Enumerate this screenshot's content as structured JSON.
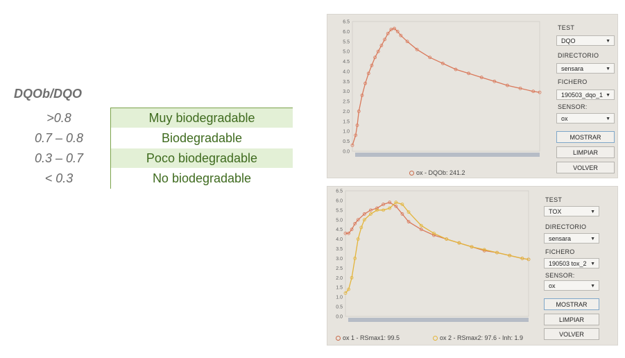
{
  "table": {
    "header": "DQOb/DQO",
    "rows": [
      {
        "ratio": ">0.8",
        "class": "Muy biodegradable",
        "shaded": true
      },
      {
        "ratio": "0.7 – 0.8",
        "class": "Biodegradable",
        "shaded": false
      },
      {
        "ratio": "0.3 – 0.7",
        "class": "Poco biodegradable",
        "shaded": true
      },
      {
        "ratio": "< 0.3",
        "class": "No biodegradable",
        "shaded": false
      }
    ],
    "colors": {
      "accent": "#7aa24a",
      "shade": "#e3f0d6",
      "class_text": "#3f6b1f"
    }
  },
  "panel_top": {
    "controls": {
      "test_label": "TEST",
      "test_value": "DQO",
      "dir_label": "DIRECTORIO",
      "dir_value": "sensara",
      "file_label": "FICHERO",
      "file_value": "190503_dqo_1",
      "sensor_label": "SENSOR:",
      "sensor_value": "ox",
      "show_label": "MOSTRAR",
      "clear_label": "LIMPIAR",
      "back_label": "VOLVER"
    },
    "legend": [
      "ox - DQOb: 241.2"
    ]
  },
  "panel_bottom": {
    "controls": {
      "test_label": "TEST",
      "test_value": "TOX",
      "dir_label": "DIRECTORIO",
      "dir_value": "sensara",
      "file_label": "FICHERO",
      "file_value": "190503 tox_2",
      "sensor_label": "SENSOR:",
      "sensor_value": "ox",
      "show_label": "MOSTRAR",
      "clear_label": "LIMPIAR",
      "back_label": "VOLVER"
    },
    "legend": [
      "ox 1 - RSmax1: 99.5",
      "ox 2 - RSmax2: 97.6 - Inh: 1.9"
    ]
  },
  "chart_data": [
    {
      "type": "line",
      "ylim": [
        0,
        6.5
      ],
      "yticks": [
        "0.0",
        "0.5",
        "1.0",
        "1.5",
        "2.0",
        "2.5",
        "3.0",
        "3.5",
        "4.0",
        "4.5",
        "5.0",
        "5.5",
        "6.0",
        "6.5"
      ],
      "series": [
        {
          "name": "ox - DQOb: 241.2",
          "color": "#d9785a",
          "x": [
            0,
            1,
            1.5,
            2,
            3,
            4,
            5,
            6,
            7,
            8,
            9,
            10,
            11,
            12,
            13,
            14,
            15,
            17,
            20,
            24,
            28,
            32,
            36,
            40,
            44,
            48,
            52,
            56,
            58
          ],
          "y": [
            0.3,
            0.8,
            1.3,
            2.0,
            2.8,
            3.4,
            3.9,
            4.3,
            4.7,
            5.0,
            5.3,
            5.6,
            5.9,
            6.1,
            6.15,
            6.0,
            5.8,
            5.5,
            5.1,
            4.7,
            4.4,
            4.1,
            3.9,
            3.7,
            3.5,
            3.3,
            3.15,
            3.0,
            2.95
          ]
        }
      ]
    },
    {
      "type": "line",
      "ylim": [
        0,
        6.5
      ],
      "yticks": [
        "0.0",
        "0.5",
        "1.0",
        "1.5",
        "2.0",
        "2.5",
        "3.0",
        "3.5",
        "4.0",
        "4.5",
        "5.0",
        "5.5",
        "6.0",
        "6.5"
      ],
      "series": [
        {
          "name": "ox 1 - RSmax1: 99.5",
          "color": "#d9785a",
          "x": [
            0,
            1,
            2,
            3,
            4,
            6,
            8,
            10,
            12,
            14,
            16,
            18,
            20,
            24,
            28,
            32,
            36,
            40,
            44,
            48,
            52,
            56,
            58
          ],
          "y": [
            4.3,
            4.3,
            4.5,
            4.8,
            5.0,
            5.3,
            5.5,
            5.6,
            5.8,
            5.9,
            5.7,
            5.3,
            4.9,
            4.5,
            4.2,
            4.0,
            3.8,
            3.6,
            3.4,
            3.3,
            3.15,
            3.0,
            2.95
          ]
        },
        {
          "name": "ox 2 - RSmax2: 97.6 - Inh: 1.9",
          "color": "#e3b43a",
          "x": [
            0,
            1,
            2,
            3,
            4,
            5,
            6,
            8,
            10,
            12,
            14,
            16,
            18,
            20,
            24,
            28,
            32,
            36,
            40,
            44,
            48,
            52,
            56,
            58
          ],
          "y": [
            1.2,
            1.4,
            2.0,
            3.0,
            4.0,
            4.6,
            5.0,
            5.3,
            5.5,
            5.5,
            5.6,
            5.9,
            5.8,
            5.4,
            4.7,
            4.3,
            4.0,
            3.8,
            3.6,
            3.45,
            3.3,
            3.15,
            3.0,
            2.95
          ]
        }
      ]
    }
  ]
}
